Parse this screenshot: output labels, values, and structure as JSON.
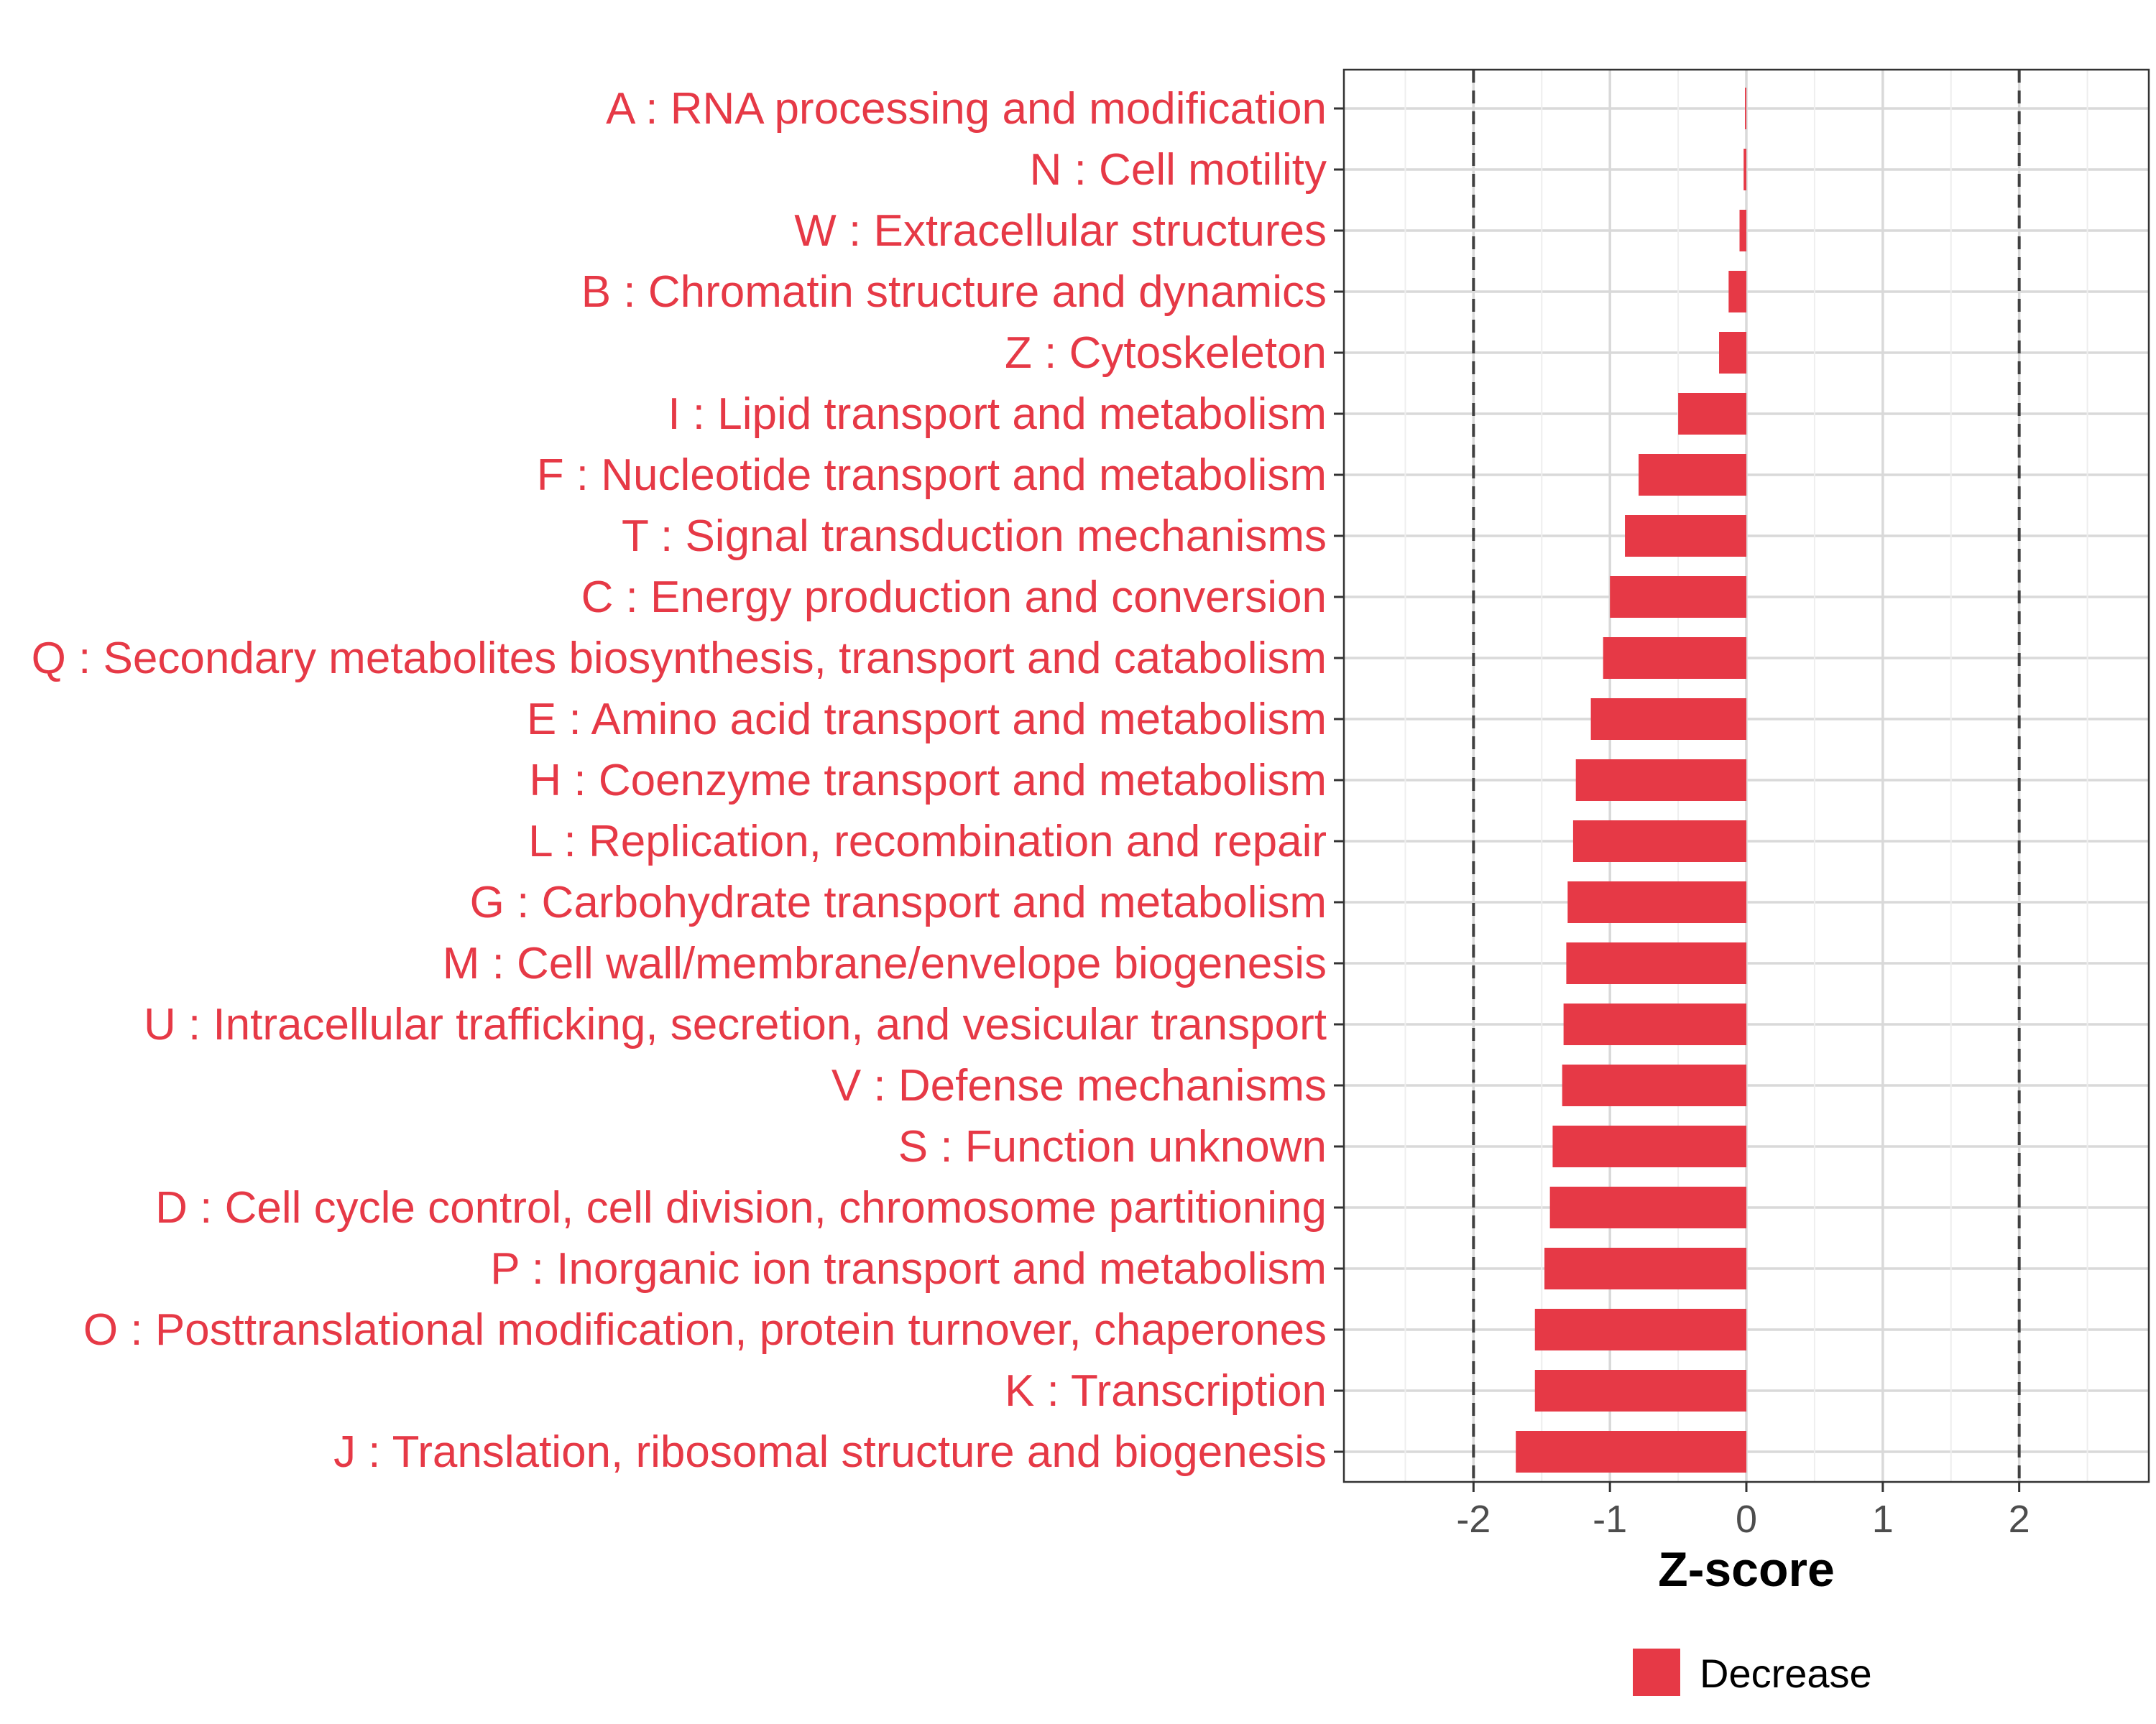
{
  "chart_data": {
    "type": "bar",
    "orientation": "horizontal",
    "title": "",
    "xlabel": "Z-score",
    "ylabel": "",
    "xlim": [
      -2.95,
      2.95
    ],
    "xticks": [
      -2,
      -1,
      0,
      1,
      2
    ],
    "xtick_labels": [
      "-2",
      "-1",
      "0",
      "1",
      "2"
    ],
    "reference_lines": [
      -2,
      2
    ],
    "grid": true,
    "legend_position": "bottom",
    "legend": [
      {
        "label": "Decrease",
        "color": "#e63946"
      }
    ],
    "bar_color": "#e63946",
    "label_color": "#e63946",
    "categories": [
      "A : RNA processing and modification",
      "N : Cell motility",
      "W : Extracellular structures",
      "B : Chromatin structure and dynamics",
      "Z : Cytoskeleton",
      "I : Lipid transport and metabolism",
      "F : Nucleotide transport and metabolism",
      "T : Signal transduction mechanisms",
      "C : Energy production and conversion",
      "Q : Secondary metabolites biosynthesis, transport and catabolism",
      "E : Amino acid transport and metabolism",
      "H : Coenzyme transport and metabolism",
      "L : Replication, recombination and repair",
      "G : Carbohydrate transport and metabolism",
      "M : Cell wall/membrane/envelope biogenesis",
      "U : Intracellular trafficking, secretion, and vesicular transport",
      "V : Defense mechanisms",
      "S : Function unknown",
      "D : Cell cycle control, cell division, chromosome partitioning",
      "P : Inorganic ion transport and metabolism",
      "O : Posttranslational modification, protein turnover, chaperones",
      "K : Transcription",
      "J : Translation, ribosomal structure and biogenesis"
    ],
    "values": [
      -0.01,
      -0.02,
      -0.05,
      -0.13,
      -0.2,
      -0.5,
      -0.79,
      -0.89,
      -1.0,
      -1.05,
      -1.14,
      -1.25,
      -1.27,
      -1.31,
      -1.32,
      -1.34,
      -1.35,
      -1.42,
      -1.44,
      -1.48,
      -1.55,
      -1.55,
      -1.69
    ]
  }
}
